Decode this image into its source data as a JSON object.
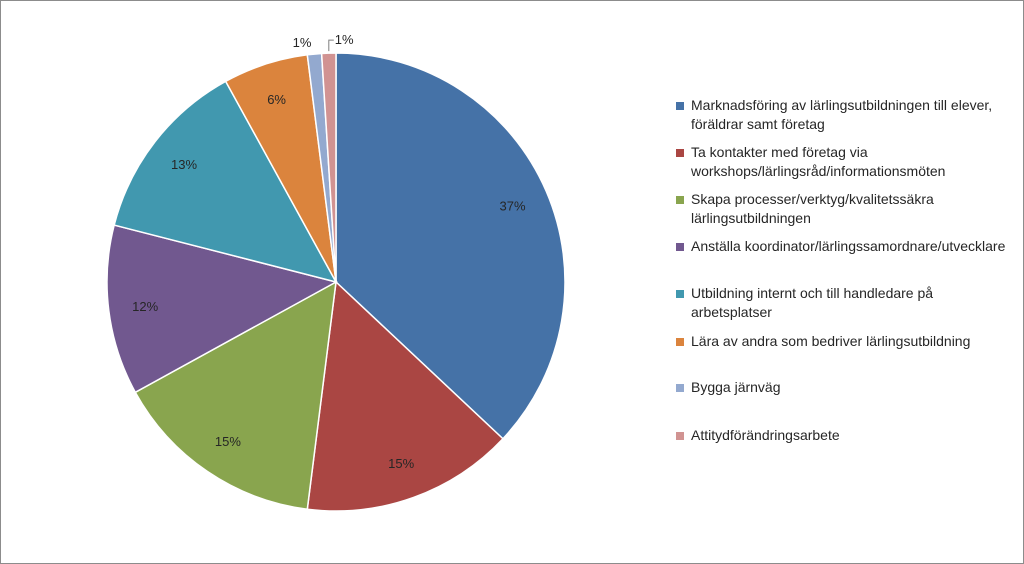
{
  "chart_data": {
    "type": "pie",
    "start_angle_deg": 0,
    "direction": "clockwise",
    "legend_position": "right",
    "slices": [
      {
        "label": "Marknadsföring av lärlingsutbildningen till elever, föräldrar samt företag",
        "value": 37,
        "display": "37%",
        "color": "#4572A7"
      },
      {
        "label": "Ta kontakter med företag via workshops/lärlingsråd/informationsmöten",
        "value": 15,
        "display": "15%",
        "color": "#AA4643"
      },
      {
        "label": "Skapa processer/verktyg/kvalitetssäkra lärlingsutbildningen",
        "value": 15,
        "display": "15%",
        "color": "#89A54E"
      },
      {
        "label": "Anställa koordinator/lärlingssamordnare/utvecklare",
        "value": 12,
        "display": "12%",
        "color": "#71588F"
      },
      {
        "label": "Utbildning internt och till handledare på arbetsplatser",
        "value": 13,
        "display": "13%",
        "color": "#4198AF"
      },
      {
        "label": "Lära av andra som bedriver lärlingsutbildning",
        "value": 6,
        "display": "6%",
        "color": "#DB843D"
      },
      {
        "label": "Bygga järnväg",
        "value": 1,
        "display": "1%",
        "color": "#93A9CF"
      },
      {
        "label": "Attitydförändringsarbete",
        "value": 1,
        "display": "1%",
        "color": "#D19392"
      }
    ]
  }
}
